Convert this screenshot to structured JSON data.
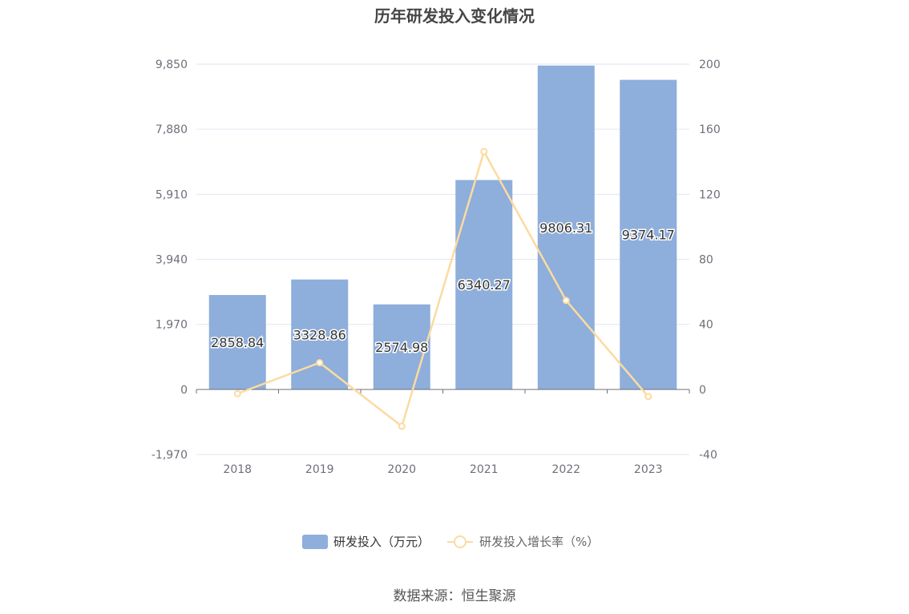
{
  "title": "历年研发投入变化情况",
  "source": "数据来源：恒生聚源",
  "chart_data": {
    "type": "bar",
    "categories": [
      "2018",
      "2019",
      "2020",
      "2021",
      "2022",
      "2023"
    ],
    "series": [
      {
        "name": "研发投入（万元）",
        "type": "bar",
        "axis": "left",
        "color": "#8eaedb",
        "values": [
          2858.84,
          3328.86,
          2574.98,
          6340.27,
          9806.31,
          9374.17
        ],
        "labels": [
          "2858.84",
          "3328.86",
          "2574.98",
          "6340.27",
          "9806.31",
          "9374.17"
        ]
      },
      {
        "name": "研发投入增长率（%）",
        "type": "line",
        "axis": "right",
        "color": "#fbdba0",
        "values": [
          -2.6,
          16.44,
          -22.65,
          146.23,
          54.67,
          -4.41
        ]
      }
    ],
    "y_left": {
      "range": [
        -1970,
        9850
      ],
      "ticks": [
        -1970,
        0,
        1970,
        3940,
        5910,
        7880,
        9850
      ],
      "tick_labels": [
        "-1,970",
        "0",
        "1,970",
        "3,940",
        "5,910",
        "7,880",
        "9,850"
      ]
    },
    "y_right": {
      "range": [
        -40,
        200
      ],
      "ticks": [
        -40,
        0,
        40,
        80,
        120,
        160,
        200
      ],
      "tick_labels": [
        "-40",
        "0",
        "40",
        "80",
        "120",
        "160",
        "200"
      ]
    },
    "grid": true,
    "legend": "bottom-center"
  }
}
